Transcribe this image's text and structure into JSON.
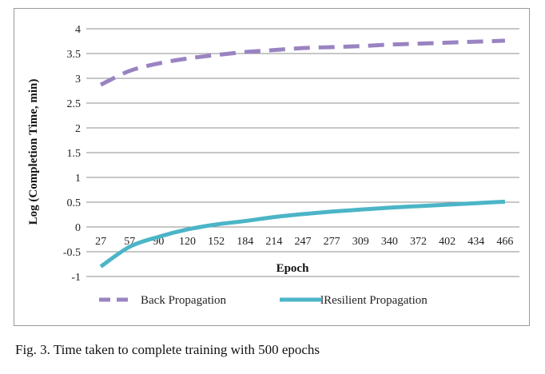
{
  "caption": "Fig. 3.  Time taken to complete training with 500 epochs",
  "colors": {
    "series_1": "#9a83c2",
    "series_2": "#4bb5c7",
    "grid": "#8f8f8f"
  },
  "chart_data": {
    "type": "line",
    "title": "",
    "xlabel": "Epoch",
    "ylabel": "Log (Completion Time, min)",
    "categories": [
      "27",
      "57",
      "90",
      "120",
      "152",
      "184",
      "214",
      "247",
      "277",
      "309",
      "340",
      "372",
      "402",
      "434",
      "466"
    ],
    "ylim": [
      -1,
      4
    ],
    "yticks": [
      "-1",
      "-0.5",
      "0",
      "0.5",
      "1",
      "1.5",
      "2",
      "2.5",
      "3",
      "3.5",
      "4"
    ],
    "grid": true,
    "legend_position": "bottom",
    "series": [
      {
        "name": "Back Propagation",
        "style": "dashed",
        "values": [
          2.87,
          3.15,
          3.3,
          3.4,
          3.47,
          3.53,
          3.57,
          3.61,
          3.63,
          3.65,
          3.68,
          3.7,
          3.72,
          3.74,
          3.76
        ]
      },
      {
        "name": "lResilient Propagation",
        "style": "solid",
        "values": [
          -0.8,
          -0.4,
          -0.2,
          -0.05,
          0.05,
          0.12,
          0.2,
          0.26,
          0.31,
          0.35,
          0.39,
          0.42,
          0.45,
          0.48,
          0.51
        ]
      }
    ]
  }
}
